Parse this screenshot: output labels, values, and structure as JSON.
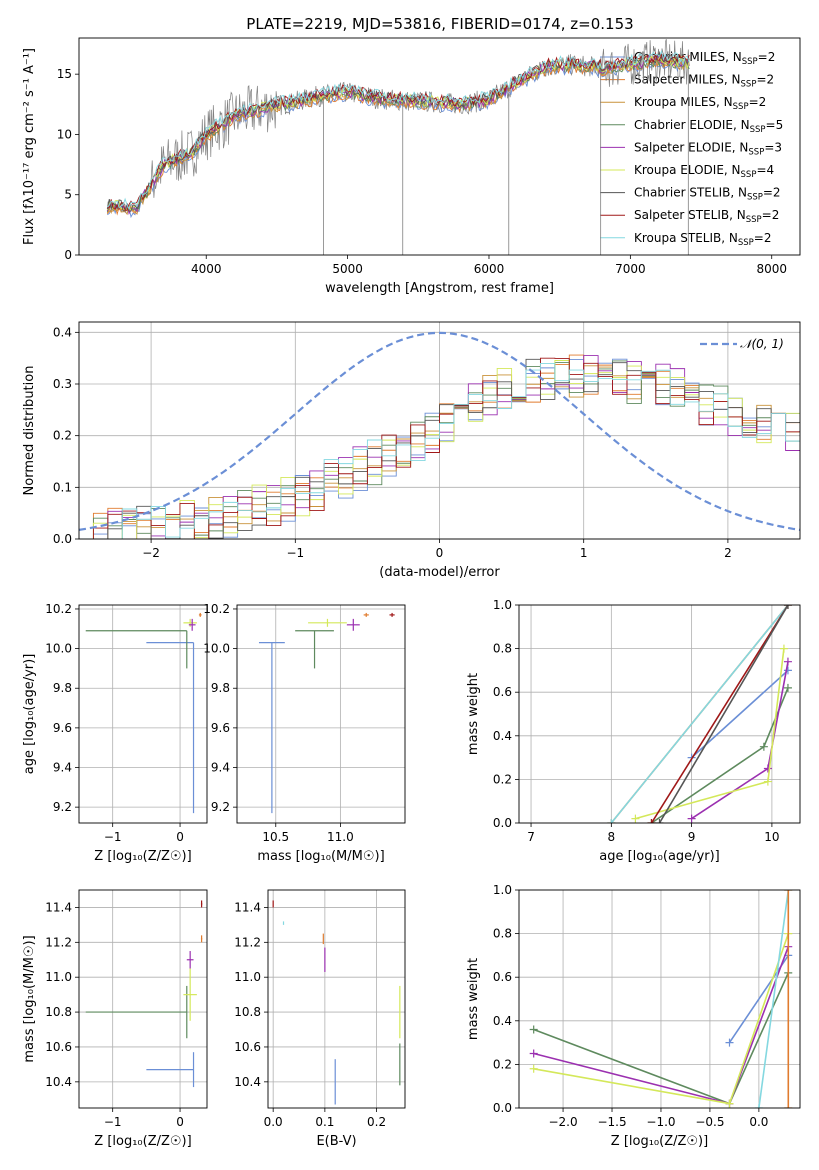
{
  "page_title": "PLATE=2219, MJD=53816, FIBERID=0174, z=0.153",
  "colors": {
    "chabrier_miles": "#6b8fd6",
    "salpeter_miles": "#e07b2e",
    "kroupa_miles": "#c9923a",
    "chabrier_elodie": "#5e8a5e",
    "salpeter_elodie": "#9b30b0",
    "kroupa_elodie": "#d4e85a",
    "chabrier_stelib": "#555555",
    "salpeter_stelib": "#a01818",
    "kroupa_stelib": "#84d8e0",
    "data": "#808080",
    "normal": "#6b8fd6"
  },
  "legend_spectrum": [
    {
      "pre": "Chabrier MILES, N",
      "sub": "SSP",
      "post": "=2",
      "color": "#6b8fd6"
    },
    {
      "pre": "Salpeter MILES, N",
      "sub": "SSP",
      "post": "=2",
      "color": "#e07b2e"
    },
    {
      "pre": "Kroupa MILES, N",
      "sub": "SSP",
      "post": "=2",
      "color": "#c9923a"
    },
    {
      "pre": "Chabrier ELODIE, N",
      "sub": "SSP",
      "post": "=5",
      "color": "#5e8a5e"
    },
    {
      "pre": "Salpeter ELODIE, N",
      "sub": "SSP",
      "post": "=3",
      "color": "#9b30b0"
    },
    {
      "pre": "Kroupa ELODIE, N",
      "sub": "SSP",
      "post": "=4",
      "color": "#d4e85a"
    },
    {
      "pre": "Chabrier STELIB, N",
      "sub": "SSP",
      "post": "=2",
      "color": "#555555"
    },
    {
      "pre": "Salpeter STELIB, N",
      "sub": "SSP",
      "post": "=2",
      "color": "#a01818"
    },
    {
      "pre": "Kroupa STELIB, N",
      "sub": "SSP",
      "post": "=2",
      "color": "#84d8e0"
    }
  ],
  "chart_data": [
    {
      "id": "spectrum",
      "type": "line",
      "title": "PLATE=2219, MJD=53816, FIBERID=0174, z=0.153",
      "xlabel": "wavelength [Angstrom, rest frame]",
      "ylabel": "Flux [fλ10⁻¹⁷ erg cm⁻² s⁻¹ A⁻¹]",
      "xlim": [
        3100,
        8200
      ],
      "ylim": [
        0,
        18
      ],
      "xticks": [
        4000,
        5000,
        6000,
        7000,
        8000
      ],
      "yticks": [
        0,
        5,
        10,
        15
      ],
      "continuum": [
        [
          3300,
          4.1
        ],
        [
          3500,
          3.8
        ],
        [
          3700,
          7.5
        ],
        [
          3900,
          8.5
        ],
        [
          4000,
          10.0
        ],
        [
          4200,
          11.5
        ],
        [
          4400,
          12.2
        ],
        [
          4600,
          12.6
        ],
        [
          4800,
          13.2
        ],
        [
          5000,
          13.5
        ],
        [
          5200,
          13.0
        ],
        [
          5400,
          12.8
        ],
        [
          5600,
          12.7
        ],
        [
          5800,
          12.5
        ],
        [
          6000,
          12.9
        ],
        [
          6200,
          14.3
        ],
        [
          6400,
          15.6
        ],
        [
          6600,
          15.8
        ],
        [
          6800,
          15.5
        ],
        [
          7000,
          15.8
        ],
        [
          7200,
          16.2
        ],
        [
          7400,
          15.9
        ]
      ],
      "grid": false
    },
    {
      "id": "residuals",
      "type": "line",
      "xlabel": "(data-model)/error",
      "ylabel": "Normed distribution",
      "xlim": [
        -2.5,
        2.5
      ],
      "ylim": [
        0,
        0.42
      ],
      "xticks": [
        -2,
        -1,
        0,
        1,
        2
      ],
      "yticks": [
        0.0,
        0.1,
        0.2,
        0.3,
        0.4
      ],
      "legend": "𝒩(0, 1)",
      "normal": {
        "mu": 0,
        "sigma": 1
      },
      "hist_envelope": [
        [
          -2.5,
          0.01
        ],
        [
          -2.0,
          0.02
        ],
        [
          -1.5,
          0.04
        ],
        [
          -1.0,
          0.08
        ],
        [
          -0.5,
          0.14
        ],
        [
          0.0,
          0.22
        ],
        [
          0.5,
          0.3
        ],
        [
          1.0,
          0.32
        ],
        [
          1.5,
          0.3
        ],
        [
          2.0,
          0.25
        ],
        [
          2.5,
          0.2
        ]
      ],
      "grid": true
    },
    {
      "id": "age_vs_Z",
      "type": "scatter",
      "xlabel": "Z [log₁₀(Z/Z☉)]",
      "ylabel": "age  [log₁₀(age/yr)]",
      "xlim": [
        -1.5,
        0.4
      ],
      "ylim": [
        9.12,
        10.22
      ],
      "xticks": [
        -1,
        0
      ],
      "yticks": [
        9.2,
        9.4,
        9.6,
        9.8,
        10.0,
        10.2
      ],
      "points": [
        {
          "x": 0.2,
          "y": 10.03,
          "xerr": [
            0.7,
            0.0
          ],
          "yerr": [
            0.86,
            0.0
          ],
          "model": "chabrier_miles"
        },
        {
          "x": 0.1,
          "y": 10.09,
          "xerr": [
            1.5,
            0.0
          ],
          "yerr": [
            0.19,
            0.0
          ],
          "model": "chabrier_elodie"
        },
        {
          "x": 0.15,
          "y": 10.13,
          "xerr": [
            0.1,
            0.1
          ],
          "yerr": [
            0.02,
            0.02
          ],
          "model": "kroupa_elodie"
        },
        {
          "x": 0.18,
          "y": 10.12,
          "xerr": [
            0.05,
            0.05
          ],
          "yerr": [
            0.03,
            0.03
          ],
          "model": "salpeter_elodie"
        },
        {
          "x": 0.3,
          "y": 10.17,
          "xerr": [
            0.02,
            0.02
          ],
          "yerr": [
            0.01,
            0.01
          ],
          "model": "salpeter_miles"
        }
      ]
    },
    {
      "id": "age_vs_mass",
      "type": "scatter",
      "xlabel": "mass [log₁₀(M/M☉)]",
      "ylabel": "",
      "xlim": [
        10.2,
        11.5
      ],
      "ylim": [
        9.12,
        10.22
      ],
      "xticks": [
        10.5,
        11.0
      ],
      "yticks": [
        9.2,
        9.4,
        9.6,
        9.8,
        10.0,
        10.2
      ],
      "points": [
        {
          "x": 10.47,
          "y": 10.03,
          "xerr": [
            0.1,
            0.1
          ],
          "yerr": [
            0.86,
            0.0
          ],
          "model": "chabrier_miles"
        },
        {
          "x": 10.8,
          "y": 10.09,
          "xerr": [
            0.15,
            0.15
          ],
          "yerr": [
            0.19,
            0.0
          ],
          "model": "chabrier_elodie"
        },
        {
          "x": 10.9,
          "y": 10.13,
          "xerr": [
            0.15,
            0.15
          ],
          "yerr": [
            0.02,
            0.02
          ],
          "model": "kroupa_elodie"
        },
        {
          "x": 11.1,
          "y": 10.12,
          "xerr": [
            0.05,
            0.05
          ],
          "yerr": [
            0.03,
            0.03
          ],
          "model": "salpeter_elodie"
        },
        {
          "x": 11.2,
          "y": 10.17,
          "xerr": [
            0.02,
            0.02
          ],
          "yerr": [
            0.01,
            0.01
          ],
          "model": "salpeter_miles"
        },
        {
          "x": 11.4,
          "y": 10.17,
          "xerr": [
            0.02,
            0.02
          ],
          "yerr": [
            0.01,
            0.01
          ],
          "model": "salpeter_stelib"
        }
      ]
    },
    {
      "id": "massweight_vs_age",
      "type": "line",
      "xlabel": "age  [log₁₀(age/yr)]",
      "ylabel": "mass weight",
      "xlim": [
        6.85,
        10.35
      ],
      "ylim": [
        0,
        1
      ],
      "xticks": [
        7,
        8,
        9,
        10
      ],
      "yticks": [
        0.0,
        0.2,
        0.4,
        0.6,
        0.8,
        1.0
      ],
      "series": [
        {
          "model": "chabrier_miles",
          "x": [
            9.0,
            10.2
          ],
          "y": [
            0.3,
            0.7
          ]
        },
        {
          "model": "salpeter_miles",
          "x": [
            8.0,
            10.2
          ],
          "y": [
            0.0,
            1.0
          ]
        },
        {
          "model": "chabrier_elodie",
          "x": [
            8.5,
            9.9,
            10.2
          ],
          "y": [
            0.0,
            0.35,
            0.62
          ]
        },
        {
          "model": "salpeter_elodie",
          "x": [
            9.0,
            9.95,
            10.2
          ],
          "y": [
            0.02,
            0.25,
            0.74
          ]
        },
        {
          "model": "kroupa_elodie",
          "x": [
            8.3,
            9.95,
            10.15
          ],
          "y": [
            0.02,
            0.19,
            0.8
          ]
        },
        {
          "model": "kroupa_stelib",
          "x": [
            8.0,
            10.2
          ],
          "y": [
            0.0,
            1.0
          ]
        },
        {
          "model": "salpeter_stelib",
          "x": [
            8.5,
            10.2
          ],
          "y": [
            0.0,
            1.0
          ]
        },
        {
          "model": "chabrier_stelib",
          "x": [
            8.6,
            10.2
          ],
          "y": [
            0.0,
            1.0
          ]
        }
      ]
    },
    {
      "id": "mass_vs_Z",
      "type": "scatter",
      "xlabel": "Z [log₁₀(Z/Z☉)]",
      "ylabel": "mass [log₁₀(M/M☉)]",
      "xlim": [
        -1.5,
        0.4
      ],
      "ylim": [
        10.25,
        11.5
      ],
      "xticks": [
        -1,
        0
      ],
      "yticks": [
        10.4,
        10.6,
        10.8,
        11.0,
        11.2,
        11.4
      ],
      "points": [
        {
          "x": 0.2,
          "y": 10.47,
          "xerr": [
            0.7,
            0.0
          ],
          "yerr": [
            0.1,
            0.1
          ],
          "model": "chabrier_miles"
        },
        {
          "x": 0.1,
          "y": 10.8,
          "xerr": [
            1.5,
            0.0
          ],
          "yerr": [
            0.15,
            0.15
          ],
          "model": "chabrier_elodie"
        },
        {
          "x": 0.15,
          "y": 10.9,
          "xerr": [
            0.1,
            0.1
          ],
          "yerr": [
            0.15,
            0.15
          ],
          "model": "kroupa_elodie"
        },
        {
          "x": 0.15,
          "y": 11.1,
          "xerr": [
            0.05,
            0.05
          ],
          "yerr": [
            0.05,
            0.05
          ],
          "model": "salpeter_elodie"
        },
        {
          "x": 0.32,
          "y": 11.22,
          "xerr": [
            0.01,
            0.01
          ],
          "yerr": [
            0.02,
            0.02
          ],
          "model": "salpeter_miles"
        },
        {
          "x": 0.32,
          "y": 11.42,
          "xerr": [
            0.01,
            0.01
          ],
          "yerr": [
            0.02,
            0.02
          ],
          "model": "salpeter_stelib"
        }
      ]
    },
    {
      "id": "mass_vs_ebv",
      "type": "scatter",
      "xlabel": "E(B-V)",
      "ylabel": "",
      "xlim": [
        -0.01,
        0.255
      ],
      "ylim": [
        10.25,
        11.5
      ],
      "xticks": [
        0.0,
        0.1,
        0.2
      ],
      "yticks": [
        10.4,
        10.6,
        10.8,
        11.0,
        11.2,
        11.4
      ],
      "points": [
        {
          "x": 0.12,
          "y": 10.4,
          "yerr": [
            0.13,
            0.13
          ],
          "model": "chabrier_miles"
        },
        {
          "x": 0.245,
          "y": 10.5,
          "yerr": [
            0.12,
            0.12
          ],
          "model": "chabrier_elodie"
        },
        {
          "x": 0.245,
          "y": 10.8,
          "yerr": [
            0.15,
            0.15
          ],
          "model": "kroupa_elodie"
        },
        {
          "x": 0.1,
          "y": 11.1,
          "yerr": [
            0.07,
            0.07
          ],
          "model": "salpeter_elodie"
        },
        {
          "x": 0.097,
          "y": 11.22,
          "yerr": [
            0.03,
            0.03
          ],
          "model": "salpeter_miles"
        },
        {
          "x": 0.0,
          "y": 11.42,
          "yerr": [
            0.02,
            0.02
          ],
          "model": "salpeter_stelib"
        },
        {
          "x": 0.02,
          "y": 11.31,
          "yerr": [
            0.01,
            0.01
          ],
          "model": "kroupa_stelib"
        }
      ]
    },
    {
      "id": "massweight_vs_Z",
      "type": "line",
      "xlabel": "Z [log₁₀(Z/Z☉)]",
      "ylabel": "mass weight",
      "xlim": [
        -2.45,
        0.42
      ],
      "ylim": [
        0,
        1
      ],
      "xticks": [
        -2.0,
        -1.5,
        -1.0,
        -0.5,
        0.0
      ],
      "yticks": [
        0.0,
        0.2,
        0.4,
        0.6,
        0.8,
        1.0
      ],
      "series": [
        {
          "model": "chabrier_miles",
          "x": [
            -0.3,
            0.3
          ],
          "y": [
            0.3,
            0.7
          ]
        },
        {
          "model": "chabrier_elodie",
          "x": [
            -2.3,
            -0.3,
            0.3
          ],
          "y": [
            0.36,
            0.02,
            0.62
          ]
        },
        {
          "model": "salpeter_elodie",
          "x": [
            -2.3,
            -0.3,
            0.3
          ],
          "y": [
            0.25,
            0.02,
            0.74
          ]
        },
        {
          "model": "kroupa_elodie",
          "x": [
            -2.3,
            -0.3,
            0.3
          ],
          "y": [
            0.18,
            0.02,
            0.8
          ]
        },
        {
          "model": "kroupa_stelib",
          "x": [
            0.0,
            0.3
          ],
          "y": [
            0.0,
            1.0
          ]
        },
        {
          "model": "salpeter_miles",
          "x": [
            0.3,
            0.3
          ],
          "y": [
            0.0,
            1.0
          ]
        }
      ]
    }
  ]
}
